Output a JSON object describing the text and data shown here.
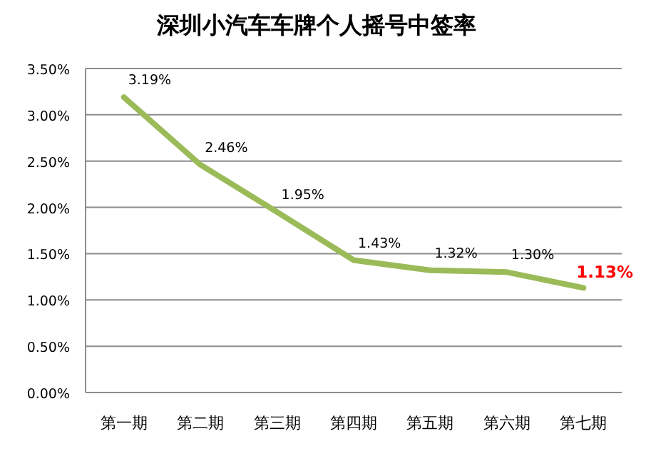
{
  "chart_data": {
    "type": "line",
    "title": "深圳小汽车车牌个人摇号中签率",
    "categories": [
      "第一期",
      "第二期",
      "第三期",
      "第四期",
      "第五期",
      "第六期",
      "第七期"
    ],
    "series": [
      {
        "color": "#9bbb59",
        "values": [
          3.19,
          2.46,
          1.95,
          1.43,
          1.32,
          1.3,
          1.13
        ],
        "value_labels": [
          "3.19%",
          "2.46%",
          "1.95%",
          "1.43%",
          "1.32%",
          "1.30%",
          "1.13%"
        ]
      }
    ],
    "ylim": [
      0,
      3.5
    ],
    "yticks": [
      {
        "value": 0,
        "label": "0.00%"
      },
      {
        "value": 0.5,
        "label": "0.50%"
      },
      {
        "value": 1,
        "label": "1.00%"
      },
      {
        "value": 1.5,
        "label": "1.50%"
      },
      {
        "value": 2,
        "label": "2.00%"
      },
      {
        "value": 2.5,
        "label": "2.50%"
      },
      {
        "value": 3,
        "label": "3.00%"
      },
      {
        "value": 3.5,
        "label": "3.50%"
      }
    ],
    "grid": "y",
    "marker": "none",
    "line_style": "solid"
  }
}
